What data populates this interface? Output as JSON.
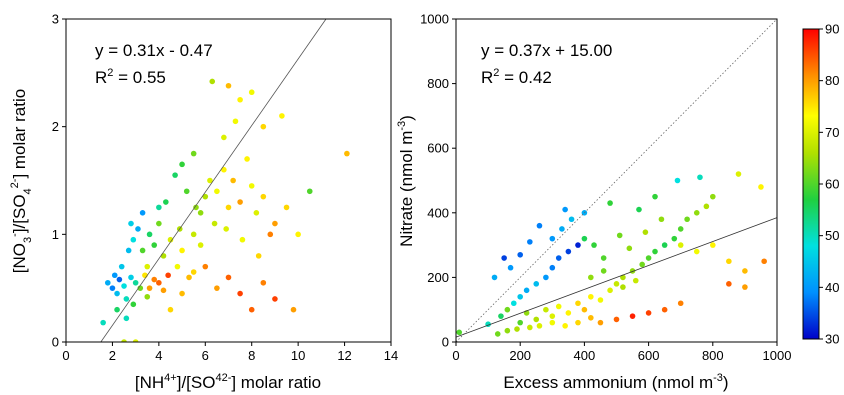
{
  "colorbar": {
    "ticks": [
      "90",
      "80",
      "70",
      "60",
      "50",
      "40",
      "30"
    ],
    "range": [
      30,
      90
    ]
  },
  "chart_data": [
    {
      "type": "scatter",
      "xlabel": "[NH4+]/[SO42-] molar ratio",
      "ylabel": "[NO3-]/[SO42-] molar ratio",
      "xlim": [
        0,
        14
      ],
      "ylim": [
        0,
        3
      ],
      "xticks": [
        "0",
        "2",
        "4",
        "6",
        "8",
        "10",
        "12",
        "14"
      ],
      "yticks": [
        "0",
        "1",
        "2",
        "3"
      ],
      "equation_text": "y = 0.31x - 0.47",
      "r2_prefix": "R",
      "r2_sup": "2",
      "r2_value": " = 0.55",
      "fit_line": {
        "x": [
          1.5,
          11.2
        ],
        "y": [
          0.0,
          3.0
        ]
      },
      "points": [
        [
          1.8,
          0.55,
          42
        ],
        [
          2.0,
          0.5,
          38
        ],
        [
          2.1,
          0.62,
          40
        ],
        [
          2.2,
          0.45,
          44
        ],
        [
          2.3,
          0.58,
          36
        ],
        [
          2.4,
          0.7,
          45
        ],
        [
          2.5,
          0.52,
          48
        ],
        [
          2.2,
          0.3,
          55
        ],
        [
          2.6,
          0.4,
          50
        ],
        [
          2.8,
          0.6,
          46
        ],
        [
          3.0,
          0.55,
          52
        ],
        [
          2.9,
          0.35,
          58
        ],
        [
          3.2,
          0.5,
          62
        ],
        [
          3.4,
          0.62,
          75
        ],
        [
          3.6,
          0.5,
          80
        ],
        [
          3.8,
          0.58,
          82
        ],
        [
          4.0,
          0.55,
          84
        ],
        [
          4.2,
          0.48,
          80
        ],
        [
          3.5,
          0.7,
          70
        ],
        [
          3.3,
          0.85,
          60
        ],
        [
          2.7,
          0.85,
          44
        ],
        [
          2.9,
          0.95,
          48
        ],
        [
          3.1,
          1.05,
          42
        ],
        [
          3.3,
          1.2,
          40
        ],
        [
          2.8,
          1.1,
          46
        ],
        [
          3.6,
          1.0,
          55
        ],
        [
          3.8,
          0.9,
          58
        ],
        [
          4.0,
          1.1,
          62
        ],
        [
          4.2,
          0.8,
          66
        ],
        [
          4.5,
          0.95,
          70
        ],
        [
          4.8,
          0.7,
          72
        ],
        [
          5.0,
          0.85,
          74
        ],
        [
          5.3,
          0.6,
          78
        ],
        [
          5.5,
          1.0,
          68
        ],
        [
          5.8,
          1.2,
          64
        ],
        [
          6.0,
          1.35,
          66
        ],
        [
          6.2,
          1.5,
          70
        ],
        [
          6.5,
          1.4,
          72
        ],
        [
          6.8,
          1.6,
          74
        ],
        [
          7.0,
          1.25,
          76
        ],
        [
          7.2,
          1.5,
          78
        ],
        [
          7.5,
          1.3,
          80
        ],
        [
          7.8,
          1.7,
          74
        ],
        [
          8.0,
          1.45,
          72
        ],
        [
          8.2,
          1.2,
          70
        ],
        [
          8.5,
          1.35,
          76
        ],
        [
          8.8,
          1.0,
          82
        ],
        [
          9.0,
          1.1,
          80
        ],
        [
          9.5,
          1.25,
          76
        ],
        [
          10.0,
          1.0,
          74
        ],
        [
          10.5,
          1.4,
          60
        ],
        [
          12.1,
          1.75,
          78
        ],
        [
          6.3,
          2.42,
          66
        ],
        [
          7.0,
          2.38,
          78
        ],
        [
          7.5,
          2.25,
          74
        ],
        [
          8.0,
          2.32,
          72
        ],
        [
          8.5,
          2.0,
          76
        ],
        [
          9.3,
          2.1,
          74
        ],
        [
          6.8,
          1.9,
          70
        ],
        [
          7.3,
          2.05,
          72
        ],
        [
          5.5,
          1.75,
          62
        ],
        [
          5.0,
          1.65,
          58
        ],
        [
          4.7,
          1.55,
          55
        ],
        [
          5.2,
          1.4,
          60
        ],
        [
          4.3,
          1.3,
          56
        ],
        [
          4.0,
          1.25,
          52
        ],
        [
          6.0,
          0.7,
          82
        ],
        [
          6.5,
          0.5,
          80
        ],
        [
          7.0,
          0.6,
          84
        ],
        [
          7.5,
          0.45,
          86
        ],
        [
          8.0,
          0.3,
          84
        ],
        [
          8.5,
          0.55,
          82
        ],
        [
          9.0,
          0.4,
          86
        ],
        [
          9.8,
          0.3,
          80
        ],
        [
          4.5,
          0.3,
          76
        ],
        [
          5.0,
          0.45,
          78
        ],
        [
          5.5,
          0.65,
          76
        ],
        [
          3.0,
          0.0,
          70
        ],
        [
          2.5,
          0.0,
          68
        ],
        [
          2.6,
          0.22,
          50
        ],
        [
          1.6,
          0.18,
          50
        ],
        [
          3.5,
          0.42,
          64
        ],
        [
          4.4,
          0.62,
          86
        ],
        [
          5.8,
          0.9,
          70
        ],
        [
          6.4,
          1.1,
          68
        ],
        [
          7.6,
          0.95,
          72
        ],
        [
          8.3,
          0.8,
          76
        ],
        [
          6.9,
          1.05,
          70
        ],
        [
          5.6,
          1.25,
          64
        ],
        [
          4.9,
          1.05,
          66
        ]
      ]
    },
    {
      "type": "scatter",
      "xlabel": "Excess ammonium (nmol m-3)",
      "ylabel": "Nitrate (nmol m-3)",
      "xlim": [
        0,
        1000
      ],
      "ylim": [
        0,
        1000
      ],
      "xticks": [
        "0",
        "200",
        "400",
        "600",
        "800",
        "1000"
      ],
      "yticks": [
        "0",
        "200",
        "400",
        "600",
        "800",
        "1000"
      ],
      "equation_text": "y = 0.37x + 15.00",
      "r2_prefix": "R",
      "r2_sup": "2",
      "r2_value": " = 0.42",
      "fit_line": {
        "x": [
          0,
          1000
        ],
        "y": [
          15,
          385
        ]
      },
      "one_to_one_line": {
        "x": [
          0,
          1000
        ],
        "y": [
          0,
          1000
        ]
      },
      "points": [
        [
          10,
          30,
          60
        ],
        [
          100,
          55,
          50
        ],
        [
          140,
          80,
          55
        ],
        [
          160,
          100,
          62
        ],
        [
          180,
          120,
          48
        ],
        [
          200,
          140,
          45
        ],
        [
          220,
          160,
          42
        ],
        [
          250,
          180,
          44
        ],
        [
          280,
          200,
          40
        ],
        [
          300,
          230,
          38
        ],
        [
          320,
          260,
          36
        ],
        [
          350,
          280,
          34
        ],
        [
          380,
          300,
          32
        ],
        [
          300,
          320,
          40
        ],
        [
          330,
          350,
          42
        ],
        [
          360,
          380,
          44
        ],
        [
          340,
          410,
          40
        ],
        [
          400,
          400,
          42
        ],
        [
          200,
          60,
          60
        ],
        [
          220,
          90,
          64
        ],
        [
          250,
          70,
          66
        ],
        [
          280,
          100,
          68
        ],
        [
          300,
          80,
          70
        ],
        [
          320,
          110,
          72
        ],
        [
          350,
          90,
          74
        ],
        [
          380,
          120,
          76
        ],
        [
          400,
          100,
          78
        ],
        [
          420,
          140,
          74
        ],
        [
          450,
          130,
          72
        ],
        [
          480,
          160,
          70
        ],
        [
          500,
          180,
          68
        ],
        [
          520,
          200,
          66
        ],
        [
          550,
          220,
          64
        ],
        [
          580,
          240,
          62
        ],
        [
          600,
          260,
          60
        ],
        [
          620,
          280,
          58
        ],
        [
          650,
          300,
          56
        ],
        [
          680,
          320,
          58
        ],
        [
          700,
          350,
          60
        ],
        [
          720,
          380,
          62
        ],
        [
          750,
          400,
          64
        ],
        [
          780,
          420,
          66
        ],
        [
          800,
          450,
          64
        ],
        [
          880,
          520,
          70
        ],
        [
          950,
          480,
          74
        ],
        [
          760,
          510,
          50
        ],
        [
          690,
          500,
          48
        ],
        [
          620,
          450,
          58
        ],
        [
          570,
          410,
          56
        ],
        [
          480,
          430,
          58
        ],
        [
          400,
          320,
          56
        ],
        [
          430,
          300,
          58
        ],
        [
          460,
          260,
          60
        ],
        [
          510,
          330,
          62
        ],
        [
          540,
          290,
          64
        ],
        [
          590,
          340,
          66
        ],
        [
          640,
          380,
          64
        ],
        [
          700,
          300,
          70
        ],
        [
          750,
          280,
          72
        ],
        [
          800,
          300,
          74
        ],
        [
          850,
          250,
          76
        ],
        [
          900,
          220,
          78
        ],
        [
          960,
          250,
          82
        ],
        [
          850,
          180,
          84
        ],
        [
          900,
          170,
          80
        ],
        [
          700,
          120,
          82
        ],
        [
          650,
          100,
          84
        ],
        [
          600,
          90,
          86
        ],
        [
          550,
          80,
          88
        ],
        [
          500,
          70,
          84
        ],
        [
          450,
          60,
          80
        ],
        [
          420,
          75,
          78
        ],
        [
          380,
          60,
          76
        ],
        [
          340,
          50,
          74
        ],
        [
          300,
          60,
          72
        ],
        [
          260,
          50,
          70
        ],
        [
          230,
          45,
          68
        ],
        [
          190,
          40,
          66
        ],
        [
          160,
          35,
          64
        ],
        [
          130,
          25,
          62
        ],
        [
          230,
          310,
          38
        ],
        [
          200,
          270,
          36
        ],
        [
          170,
          230,
          40
        ],
        [
          120,
          200,
          42
        ],
        [
          150,
          260,
          34
        ],
        [
          260,
          360,
          38
        ],
        [
          420,
          200,
          64
        ],
        [
          460,
          220,
          62
        ],
        [
          520,
          170,
          66
        ],
        [
          560,
          190,
          68
        ]
      ]
    }
  ]
}
